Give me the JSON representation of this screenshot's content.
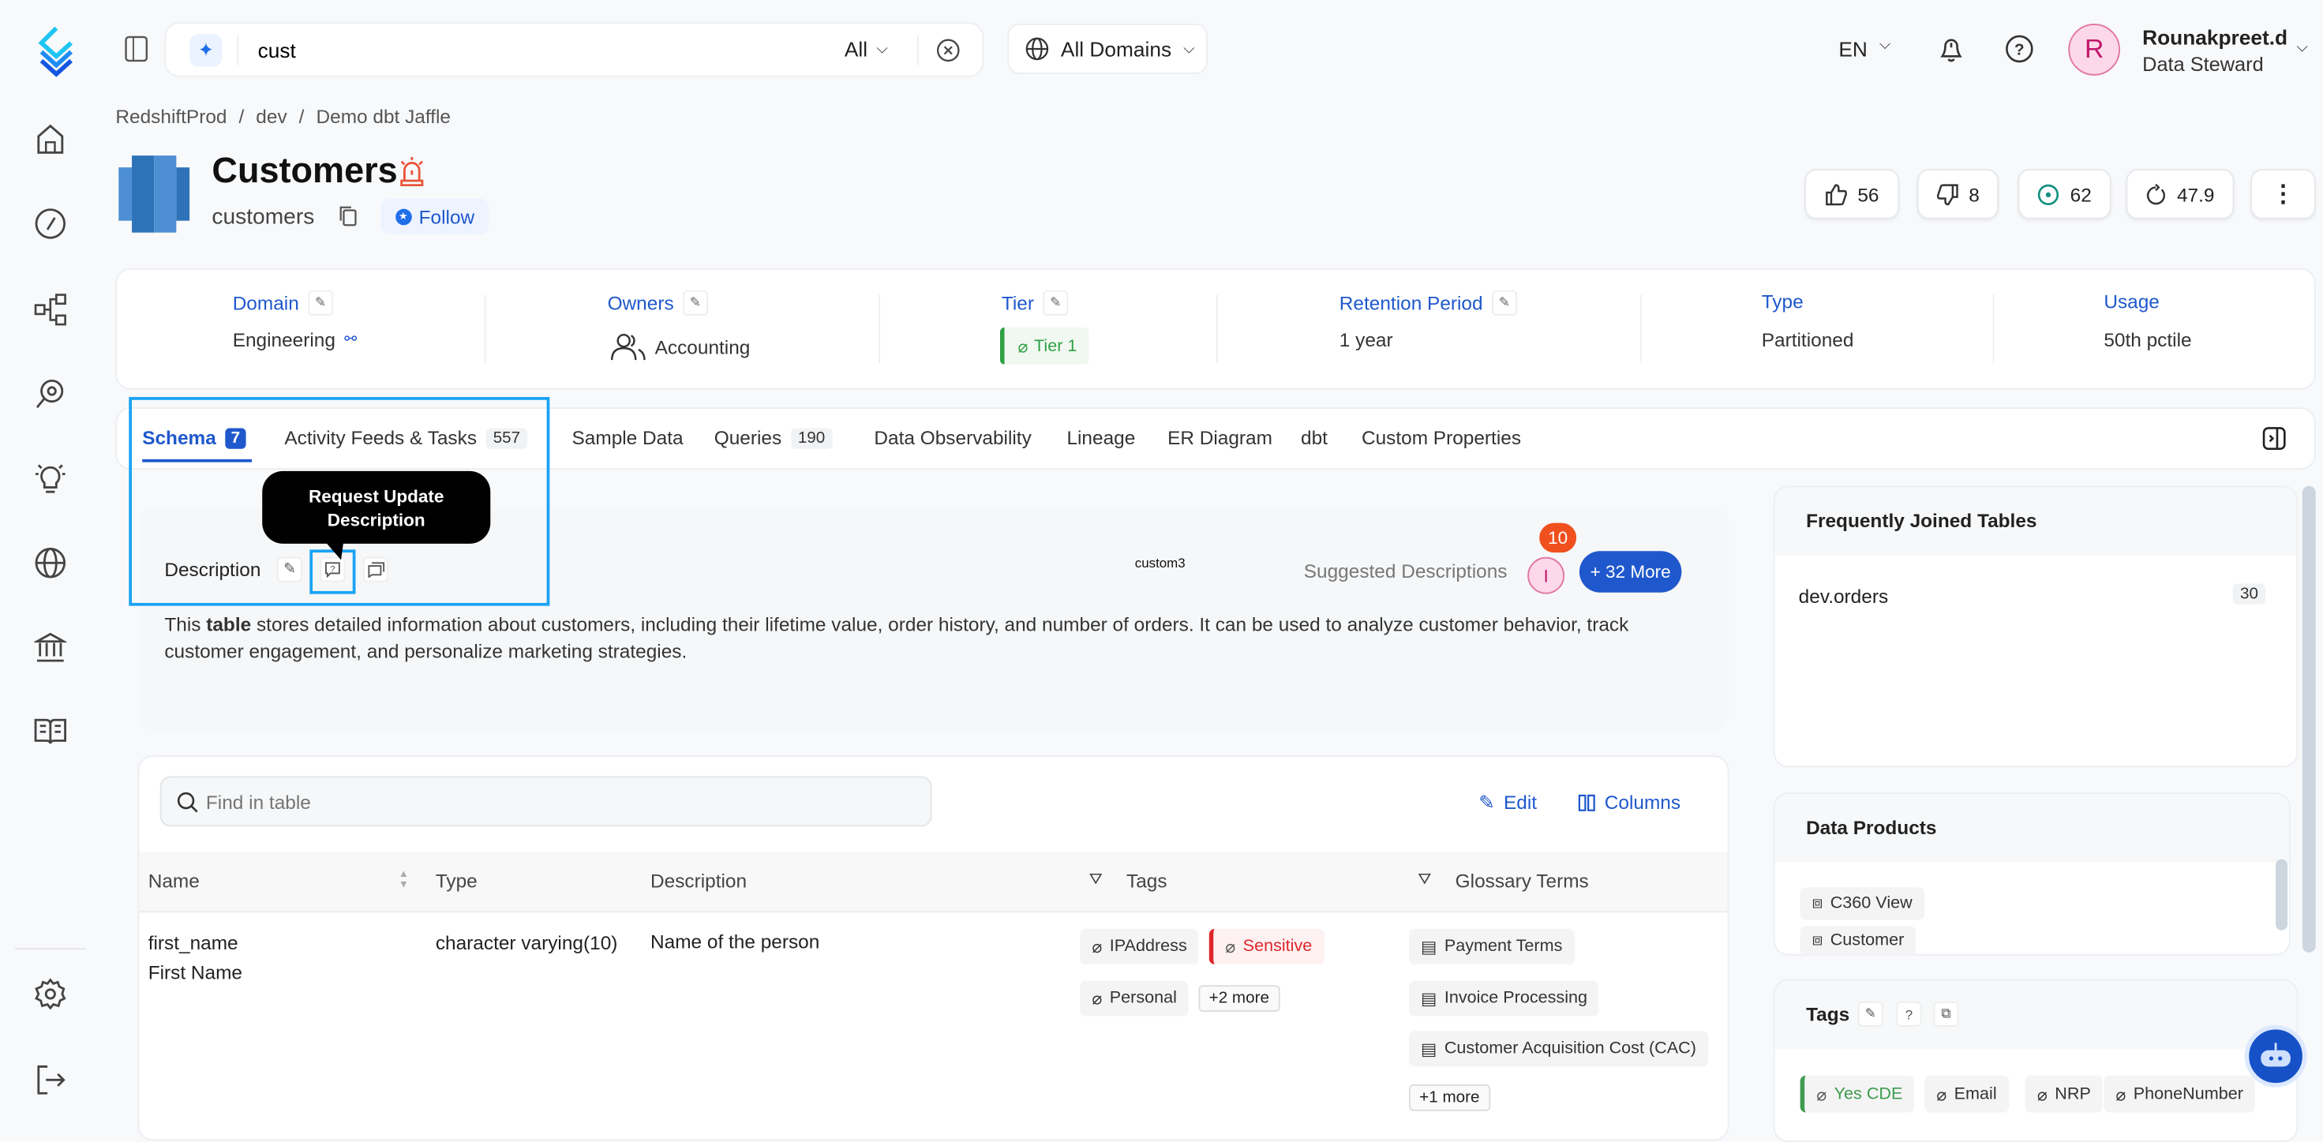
{
  "header": {
    "search": {
      "value": "cust",
      "filter": "All"
    },
    "domain_select": "All Domains",
    "language": "EN",
    "user": {
      "initial": "R",
      "name": "Rounakpreet.d",
      "role": "Data Steward"
    }
  },
  "sidebar": {
    "items": [
      "home",
      "explore",
      "lineage",
      "observability",
      "insights",
      "domains",
      "governance",
      "glossary",
      "settings",
      "logout"
    ]
  },
  "breadcrumb": [
    "RedshiftProd",
    "dev",
    "Demo dbt Jaffle"
  ],
  "entity": {
    "title": "Customers",
    "name": "customers",
    "follow_label": "Follow"
  },
  "stats": {
    "upvotes": "56",
    "downvotes": "8",
    "followers": "62",
    "version": "47.9"
  },
  "info": [
    {
      "label": "Domain",
      "value": "Engineering"
    },
    {
      "label": "Owners",
      "value": "Accounting"
    },
    {
      "label": "Tier",
      "value": "Tier 1"
    },
    {
      "label": "Retention Period",
      "value": "1 year"
    },
    {
      "label": "Type",
      "value": "Partitioned"
    },
    {
      "label": "Usage",
      "value": "50th pctile"
    }
  ],
  "tabs": [
    {
      "label": "Schema",
      "count": "7"
    },
    {
      "label": "Activity Feeds & Tasks",
      "count": "557"
    },
    {
      "label": "Sample Data"
    },
    {
      "label": "Queries",
      "count": "190"
    },
    {
      "label": "Data Observability"
    },
    {
      "label": "Lineage"
    },
    {
      "label": "ER Diagram"
    },
    {
      "label": "dbt"
    },
    {
      "label": "Custom Properties"
    }
  ],
  "description": {
    "heading": "Description",
    "tooltip": "Request Update Description",
    "custom_label": "custom3",
    "suggested_label": "Suggested Descriptions",
    "suggested_avatar": "I",
    "suggested_badge": "10",
    "more_button": "+ 32 More",
    "text_pre": "This ",
    "text_bold": "table",
    "text_post": " stores detailed information about customers, including their lifetime value, order history, and number of orders. It can be used to analyze customer behavior, track customer engagement, and personalize marketing strategies."
  },
  "schema_table": {
    "search_placeholder": "Find in table",
    "edit_label": "Edit",
    "columns_label": "Columns",
    "headers": [
      "Name",
      "Type",
      "Description",
      "Tags",
      "Glossary Terms"
    ],
    "rows": [
      {
        "name": "first_name",
        "display_name": "First Name",
        "type": "character varying(10)",
        "description": "Name of the person",
        "tags": [
          "IPAddress",
          "Sensitive",
          "Personal"
        ],
        "tags_more": "+2 more",
        "glossary": [
          "Payment Terms",
          "Invoice Processing",
          "Customer Acquisition Cost (CAC)"
        ],
        "glossary_more": "+1 more"
      }
    ]
  },
  "right_panel": {
    "joined": {
      "title": "Frequently Joined Tables",
      "items": [
        {
          "name": "dev.orders",
          "count": "30"
        }
      ]
    },
    "data_products": {
      "title": "Data Products",
      "items": [
        "C360 View",
        "Customer"
      ]
    },
    "tags": {
      "title": "Tags",
      "items": [
        "Yes CDE",
        "Email",
        "NRP",
        "PhoneNumber"
      ]
    }
  },
  "colors": {
    "accent": "#1f58cc",
    "highlight": "#1aa3f5",
    "sensitive": "#e0262b",
    "tier": "#2ea043",
    "badge": "#f0501e"
  }
}
